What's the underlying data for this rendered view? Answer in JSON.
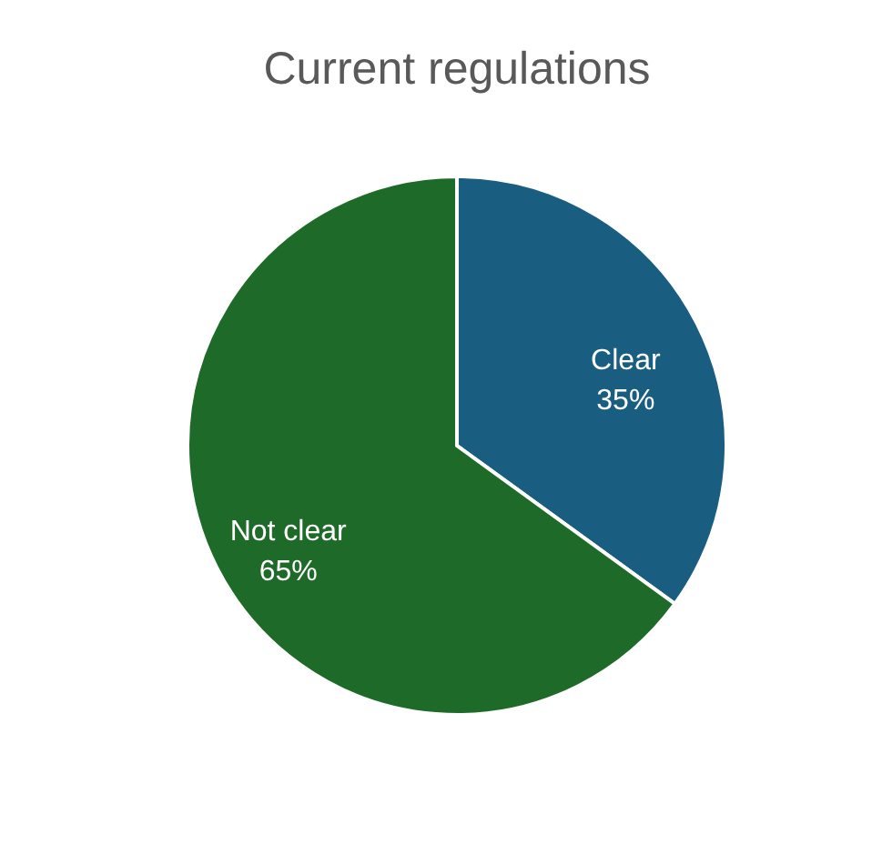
{
  "chart_data": {
    "type": "pie",
    "title": "Current regulations",
    "categories": [
      "Clear",
      "Not clear"
    ],
    "values": [
      35,
      65
    ],
    "value_labels": [
      "35%",
      "65%"
    ],
    "colors": [
      "#195e81",
      "#1e6a28"
    ],
    "legend": false
  }
}
